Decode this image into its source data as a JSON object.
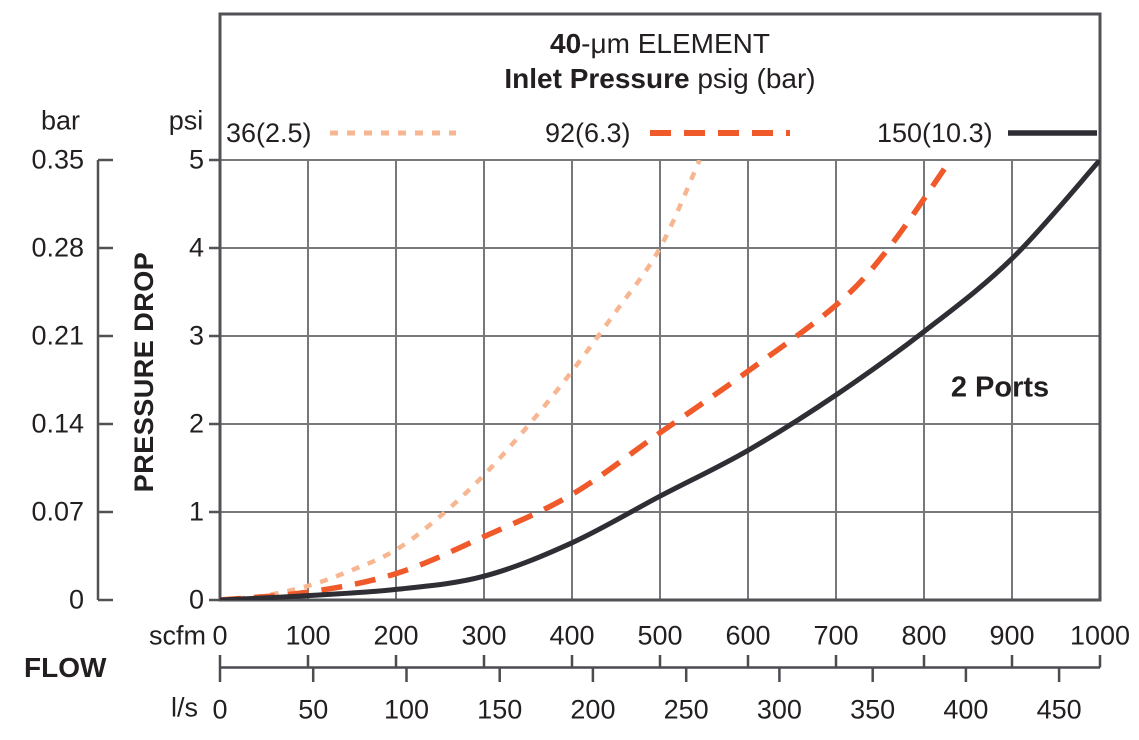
{
  "header": {
    "title_bold": "40",
    "title_rest": "-μm ELEMENT",
    "subtitle_bold": "Inlet Pressure",
    "subtitle_rest": " psig (bar)"
  },
  "axes_labels": {
    "bar_unit": "bar",
    "psi_unit": "psi",
    "pressure_drop": "PRESSURE DROP",
    "scfm_unit": "scfm",
    "flow": "FLOW",
    "ls_unit": "l/s"
  },
  "annotation": {
    "label": "2 Ports"
  },
  "colors": {
    "text": "#231F20",
    "grid": "#77787B",
    "frame": "#515256",
    "axis": "#4B4C50"
  },
  "chart_data": {
    "type": "line",
    "title": "40-μm ELEMENT",
    "subtitle": "Inlet Pressure psig (bar)",
    "annotation": "2 Ports",
    "grid": true,
    "legend_position": "top",
    "x_axis_primary": {
      "unit": "scfm",
      "range": [
        0,
        1000
      ],
      "ticks": [
        0,
        100,
        200,
        300,
        400,
        500,
        600,
        700,
        800,
        900,
        1000
      ]
    },
    "x_axis_secondary": {
      "unit": "l/s",
      "ticks": [
        0,
        50,
        100,
        150,
        200,
        250,
        300,
        350,
        400,
        450
      ],
      "scfm_per_unit": 2.119
    },
    "y_axis_primary": {
      "unit": "psi",
      "label": "PRESSURE DROP",
      "range": [
        0,
        5
      ],
      "ticks": [
        0,
        1,
        2,
        3,
        4,
        5
      ]
    },
    "y_axis_secondary": {
      "unit": "bar",
      "ticks_top_to_bottom": [
        "0.35",
        "0.28",
        "0.21",
        "0.14",
        "0.07",
        "0"
      ]
    },
    "series": [
      {
        "name": "36(2.5)",
        "inlet_pressure_psig": 36,
        "inlet_pressure_bar": 2.5,
        "style": "dotted",
        "color": "#F7B690",
        "points_scfm_psi": [
          [
            0,
            0
          ],
          [
            50,
            0.05
          ],
          [
            100,
            0.16
          ],
          [
            150,
            0.34
          ],
          [
            200,
            0.57
          ],
          [
            250,
            0.95
          ],
          [
            300,
            1.42
          ],
          [
            350,
            1.98
          ],
          [
            400,
            2.6
          ],
          [
            450,
            3.28
          ],
          [
            500,
            4.0
          ],
          [
            545,
            5.0
          ]
        ]
      },
      {
        "name": "92(6.3)",
        "inlet_pressure_psig": 92,
        "inlet_pressure_bar": 6.3,
        "style": "dashed",
        "color": "#F05A2B",
        "points_scfm_psi": [
          [
            0,
            0
          ],
          [
            100,
            0.09
          ],
          [
            200,
            0.3
          ],
          [
            300,
            0.72
          ],
          [
            400,
            1.2
          ],
          [
            500,
            1.9
          ],
          [
            600,
            2.6
          ],
          [
            700,
            3.35
          ],
          [
            760,
            4.0
          ],
          [
            830,
            5.0
          ]
        ]
      },
      {
        "name": "150(10.3)",
        "inlet_pressure_psig": 150,
        "inlet_pressure_bar": 10.3,
        "style": "solid",
        "color": "#2E2E34",
        "points_scfm_psi": [
          [
            0,
            0
          ],
          [
            100,
            0.05
          ],
          [
            200,
            0.12
          ],
          [
            300,
            0.27
          ],
          [
            400,
            0.65
          ],
          [
            500,
            1.18
          ],
          [
            600,
            1.7
          ],
          [
            700,
            2.33
          ],
          [
            800,
            3.05
          ],
          [
            900,
            3.88
          ],
          [
            1000,
            5.0
          ]
        ]
      }
    ]
  }
}
